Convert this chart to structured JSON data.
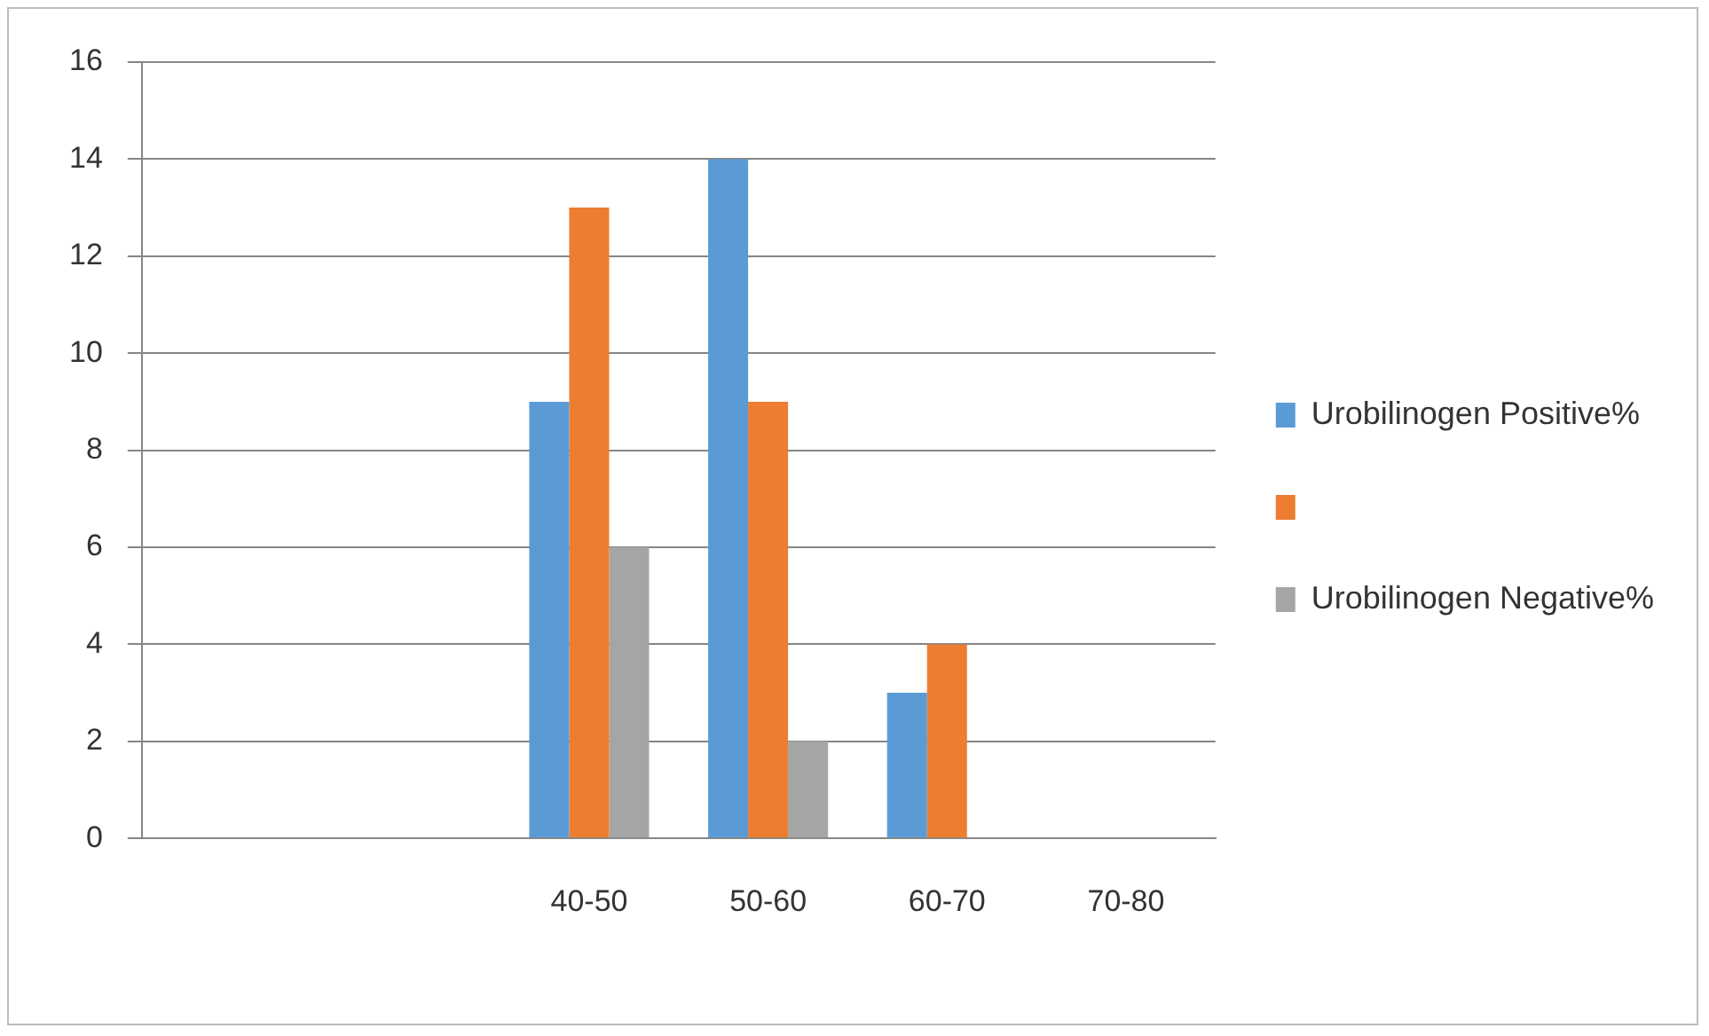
{
  "chart_data": {
    "type": "bar",
    "categories": [
      null,
      null,
      "40-50",
      "50-60",
      "60-70",
      "70-80"
    ],
    "series": [
      {
        "name": "Urobilinogen Positive%",
        "color": "#5b9bd5",
        "values": [
          null,
          null,
          9,
          14,
          3,
          null
        ]
      },
      {
        "color": "#ed7d31",
        "values": [
          null,
          null,
          13,
          9,
          4,
          null
        ]
      },
      {
        "name": "Urobilinogen Negative%",
        "color": "#a5a5a5",
        "values": [
          null,
          null,
          6,
          2,
          null,
          null
        ]
      }
    ],
    "ylim": [
      0,
      16
    ],
    "yticks": [
      0,
      2,
      4,
      6,
      8,
      10,
      12,
      14,
      16
    ],
    "grid": "y",
    "legend": "right"
  }
}
